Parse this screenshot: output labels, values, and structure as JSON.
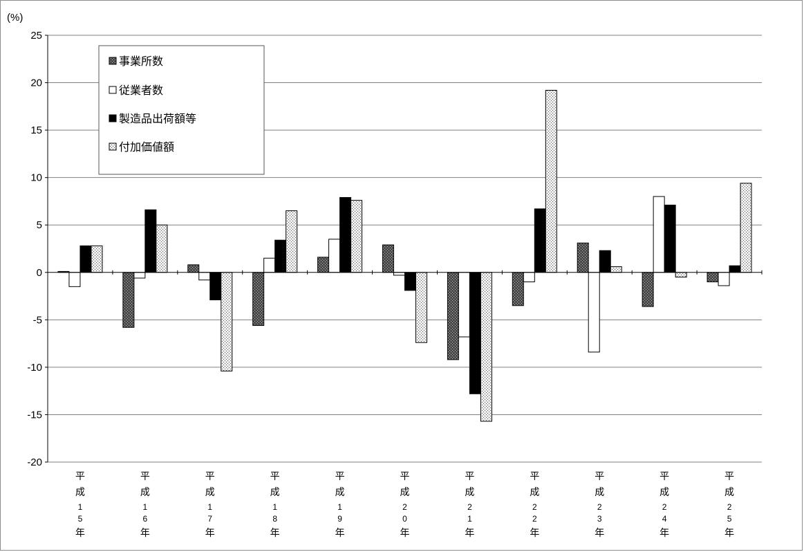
{
  "chart_data": {
    "type": "bar",
    "unit_label": "(%)",
    "ylim": [
      -20,
      25
    ],
    "yticks": [
      25,
      20,
      15,
      10,
      5,
      0,
      -5,
      -10,
      -15,
      -20
    ],
    "grid": true,
    "legend_position": "top-left",
    "categories": [
      "平成15年",
      "平成16年",
      "平成17年",
      "平成18年",
      "平成19年",
      "平成20年",
      "平成21年",
      "平成22年",
      "平成23年",
      "平成24年",
      "平成25年"
    ],
    "category_labels": [
      [
        "平",
        "成",
        "1",
        "5",
        "年"
      ],
      [
        "平",
        "成",
        "1",
        "6",
        "年"
      ],
      [
        "平",
        "成",
        "1",
        "7",
        "年"
      ],
      [
        "平",
        "成",
        "1",
        "8",
        "年"
      ],
      [
        "平",
        "成",
        "1",
        "9",
        "年"
      ],
      [
        "平",
        "成",
        "2",
        "0",
        "年"
      ],
      [
        "平",
        "成",
        "2",
        "1",
        "年"
      ],
      [
        "平",
        "成",
        "2",
        "2",
        "年"
      ],
      [
        "平",
        "成",
        "2",
        "3",
        "年"
      ],
      [
        "平",
        "成",
        "2",
        "4",
        "年"
      ],
      [
        "平",
        "成",
        "2",
        "5",
        "年"
      ]
    ],
    "series": [
      {
        "name": "事業所数",
        "pattern": "dark-crosshatch",
        "values": [
          0.1,
          -5.8,
          0.8,
          -5.6,
          1.6,
          2.9,
          -9.2,
          -3.5,
          3.1,
          -3.6,
          -1.0
        ]
      },
      {
        "name": "従業者数",
        "pattern": "white",
        "values": [
          -1.5,
          -0.6,
          -0.8,
          1.5,
          3.5,
          -0.3,
          -6.8,
          -1.0,
          -8.4,
          8.0,
          -1.4
        ]
      },
      {
        "name": "製造品出荷額等",
        "pattern": "black",
        "values": [
          2.8,
          6.6,
          -2.9,
          3.4,
          7.9,
          -1.9,
          -12.8,
          6.7,
          2.3,
          7.1,
          0.7
        ]
      },
      {
        "name": "付加価値額",
        "pattern": "light-dotted",
        "values": [
          2.8,
          5.0,
          -10.4,
          6.5,
          7.6,
          -7.4,
          -15.7,
          19.2,
          0.6,
          -0.5,
          9.4
        ]
      }
    ],
    "colors": {
      "axis": "#000000",
      "grid": "#808080",
      "frame": "#8c8c8c",
      "dark_fill": "#3a3a3a",
      "light_fill": "#e0e0e0"
    }
  }
}
